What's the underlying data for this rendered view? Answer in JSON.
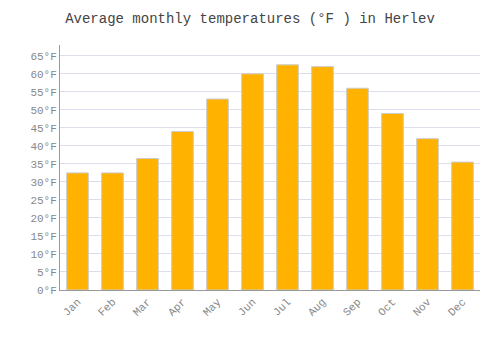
{
  "chart_data": {
    "type": "bar",
    "title": "Average monthly temperatures (°F ) in Herlev",
    "categories": [
      "Jan",
      "Feb",
      "Mar",
      "Apr",
      "May",
      "Jun",
      "Jul",
      "Aug",
      "Sep",
      "Oct",
      "Nov",
      "Dec"
    ],
    "values": [
      32.5,
      32.5,
      36.5,
      44,
      53,
      60,
      62.5,
      62,
      56,
      49,
      42,
      35.5
    ],
    "color": "#FFB300",
    "ylim": [
      0,
      68
    ],
    "yticks": [
      {
        "value": 0,
        "label": "0°F"
      },
      {
        "value": 5,
        "label": "5°F"
      },
      {
        "value": 10,
        "label": "10°F"
      },
      {
        "value": 15,
        "label": "15°F"
      },
      {
        "value": 20,
        "label": "20°F"
      },
      {
        "value": 25,
        "label": "25°F"
      },
      {
        "value": 30,
        "label": "30°F"
      },
      {
        "value": 35,
        "label": "35°F"
      },
      {
        "value": 40,
        "label": "40°F"
      },
      {
        "value": 45,
        "label": "45°F"
      },
      {
        "value": 50,
        "label": "50°F"
      },
      {
        "value": 55,
        "label": "55°F"
      },
      {
        "value": 60,
        "label": "60°F"
      },
      {
        "value": 65,
        "label": "65°F"
      }
    ],
    "grid": true
  }
}
